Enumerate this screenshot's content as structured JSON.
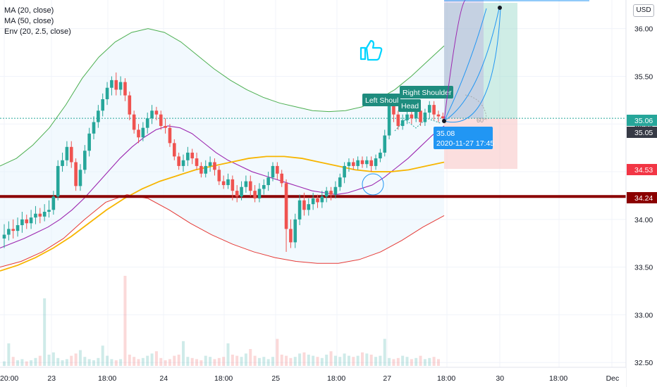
{
  "legend": {
    "ma20": "MA (20, close)",
    "ma50": "MA (50, close)",
    "env": "Env (20, 2.5, close)"
  },
  "currency": "USD",
  "colors": {
    "up": "#26a69a",
    "down": "#ef5350",
    "ma20": "#9c27b0",
    "ma50": "#f7b500",
    "env_upper": "#4caf50",
    "env_lower": "#e53935",
    "env_fill": "#e3f2fd",
    "support": "#8b0000",
    "target_zone": "#a7dfd2",
    "stop_zone": "#f8c8c8",
    "label_bg": "#1e8c7e",
    "price_tag": "#2196f3",
    "arc": "#2196f3",
    "thumb": "#00d4ff"
  },
  "annotations": {
    "left_shoulder": "Left Shoul",
    "right_shoulder": "Right Shoulder",
    "head": "Head",
    "price_bubble": "35.08",
    "time_bubble": "2020-11-27 17:45",
    "angle": "60°",
    "thumb_icon": "thumbs-up-icon"
  },
  "chart_data": {
    "type": "candlestick",
    "y_ticks": [
      "36.00",
      "35.50",
      "35.00",
      "34.50",
      "34.00",
      "33.50",
      "33.00",
      "32.50"
    ],
    "x_ticks": [
      "20:00",
      "23",
      "18:00",
      "24",
      "18:00",
      "25",
      "18:00",
      "27",
      "18:00",
      "30",
      "18:00",
      "Dec"
    ],
    "ylim": [
      32.45,
      36.3
    ],
    "price_labels": [
      {
        "value": "35.06",
        "color": "#26a69a"
      },
      {
        "value": "35.05",
        "color": "#363a45"
      },
      {
        "value": "34.53",
        "color": "#f23645"
      },
      {
        "value": "34.24",
        "color": "#8b0000"
      }
    ],
    "support_level": 34.24,
    "target_level": 36.27,
    "stop_level": 34.53,
    "entry_level": 35.06,
    "candles": [
      [
        33.8,
        33.84,
        33.7,
        33.95
      ],
      [
        33.84,
        33.9,
        33.78,
        33.98
      ],
      [
        33.9,
        33.88,
        33.8,
        34.0
      ],
      [
        33.88,
        33.94,
        33.82,
        34.02
      ],
      [
        33.94,
        34.0,
        33.86,
        34.08
      ],
      [
        34.0,
        33.96,
        33.9,
        34.05
      ],
      [
        33.96,
        34.02,
        33.9,
        34.1
      ],
      [
        34.02,
        34.06,
        33.95,
        34.14
      ],
      [
        34.06,
        34.03,
        33.96,
        34.12
      ],
      [
        34.03,
        34.08,
        33.98,
        34.16
      ],
      [
        34.08,
        34.1,
        34.02,
        34.2
      ],
      [
        34.1,
        34.24,
        34.05,
        34.3
      ],
      [
        34.24,
        34.56,
        34.2,
        34.62
      ],
      [
        34.56,
        34.62,
        34.5,
        34.7
      ],
      [
        34.62,
        34.76,
        34.56,
        34.82
      ],
      [
        34.76,
        34.6,
        34.54,
        34.82
      ],
      [
        34.6,
        34.35,
        34.3,
        34.64
      ],
      [
        34.35,
        34.52,
        34.3,
        34.58
      ],
      [
        34.52,
        34.72,
        34.48,
        34.78
      ],
      [
        34.72,
        34.9,
        34.66,
        34.96
      ],
      [
        34.9,
        35.02,
        34.84,
        35.08
      ],
      [
        35.02,
        35.14,
        34.96,
        35.2
      ],
      [
        35.14,
        35.26,
        35.08,
        35.32
      ],
      [
        35.26,
        35.38,
        35.2,
        35.44
      ],
      [
        35.38,
        35.46,
        35.3,
        35.5
      ],
      [
        35.46,
        35.36,
        35.3,
        35.54
      ],
      [
        35.36,
        35.44,
        35.3,
        35.5
      ],
      [
        35.44,
        35.3,
        35.24,
        35.48
      ],
      [
        35.3,
        35.1,
        35.04,
        35.34
      ],
      [
        35.1,
        34.94,
        34.9,
        35.14
      ],
      [
        34.94,
        34.86,
        34.8,
        35.0
      ],
      [
        34.86,
        34.96,
        34.82,
        35.02
      ],
      [
        34.96,
        35.06,
        34.9,
        35.12
      ],
      [
        35.06,
        35.14,
        35.0,
        35.2
      ],
      [
        35.14,
        35.1,
        35.04,
        35.18
      ],
      [
        35.1,
        34.98,
        34.94,
        35.14
      ],
      [
        34.98,
        34.96,
        34.9,
        35.06
      ],
      [
        34.96,
        34.8,
        34.76,
        35.0
      ],
      [
        34.8,
        34.66,
        34.62,
        34.84
      ],
      [
        34.66,
        34.56,
        34.52,
        34.7
      ],
      [
        34.56,
        34.62,
        34.5,
        34.68
      ],
      [
        34.62,
        34.7,
        34.56,
        34.76
      ],
      [
        34.7,
        34.64,
        34.58,
        34.74
      ],
      [
        34.64,
        34.56,
        34.52,
        34.7
      ],
      [
        34.56,
        34.48,
        34.44,
        34.6
      ],
      [
        34.48,
        34.56,
        34.44,
        34.62
      ],
      [
        34.56,
        34.6,
        34.5,
        34.66
      ],
      [
        34.6,
        34.52,
        34.46,
        34.64
      ],
      [
        34.52,
        34.4,
        34.36,
        34.56
      ],
      [
        34.4,
        34.36,
        34.32,
        34.46
      ],
      [
        34.36,
        34.42,
        34.32,
        34.48
      ],
      [
        34.42,
        34.3,
        34.2,
        34.46
      ],
      [
        34.3,
        34.24,
        34.18,
        34.36
      ],
      [
        34.24,
        34.34,
        34.2,
        34.4
      ],
      [
        34.34,
        34.4,
        34.28,
        34.46
      ],
      [
        34.4,
        34.3,
        34.24,
        34.46
      ],
      [
        34.3,
        34.22,
        34.18,
        34.36
      ],
      [
        34.22,
        34.32,
        34.18,
        34.38
      ],
      [
        34.32,
        34.36,
        34.26,
        34.42
      ],
      [
        34.36,
        34.44,
        34.3,
        34.5
      ],
      [
        34.44,
        34.56,
        34.4,
        34.6
      ],
      [
        34.56,
        34.48,
        34.42,
        34.6
      ],
      [
        34.48,
        34.38,
        34.34,
        34.52
      ],
      [
        34.38,
        33.9,
        33.66,
        34.42
      ],
      [
        33.9,
        33.76,
        33.7,
        34.0
      ],
      [
        33.76,
        34.0,
        33.7,
        34.06
      ],
      [
        34.0,
        34.2,
        33.94,
        34.26
      ],
      [
        34.2,
        34.1,
        34.04,
        34.28
      ],
      [
        34.1,
        34.16,
        34.04,
        34.22
      ],
      [
        34.16,
        34.22,
        34.1,
        34.28
      ],
      [
        34.22,
        34.18,
        34.12,
        34.26
      ],
      [
        34.18,
        34.24,
        34.12,
        34.3
      ],
      [
        34.24,
        34.3,
        34.18,
        34.34
      ],
      [
        34.3,
        34.26,
        34.2,
        34.34
      ],
      [
        34.26,
        34.34,
        34.22,
        34.4
      ],
      [
        34.34,
        34.44,
        34.3,
        34.48
      ],
      [
        34.44,
        34.56,
        34.38,
        34.6
      ],
      [
        34.56,
        34.6,
        34.5,
        34.64
      ],
      [
        34.6,
        34.56,
        34.52,
        34.64
      ],
      [
        34.56,
        34.62,
        34.52,
        34.66
      ],
      [
        34.62,
        34.58,
        34.54,
        34.66
      ],
      [
        34.58,
        34.62,
        34.54,
        34.66
      ],
      [
        34.62,
        34.56,
        34.5,
        34.66
      ],
      [
        34.56,
        34.64,
        34.52,
        34.68
      ],
      [
        34.64,
        34.7,
        34.6,
        34.74
      ],
      [
        34.7,
        34.88,
        34.66,
        34.94
      ],
      [
        34.88,
        35.2,
        34.84,
        35.26
      ],
      [
        35.2,
        35.1,
        35.02,
        35.26
      ],
      [
        35.1,
        34.98,
        34.94,
        35.14
      ],
      [
        34.98,
        35.04,
        34.94,
        35.1
      ],
      [
        35.04,
        35.1,
        35.0,
        35.16
      ],
      [
        35.1,
        35.06,
        35.0,
        35.14
      ],
      [
        35.06,
        35.14,
        35.02,
        35.2
      ],
      [
        35.14,
        35.02,
        34.98,
        35.18
      ],
      [
        35.02,
        35.12,
        34.98,
        35.16
      ],
      [
        35.12,
        35.2,
        35.06,
        35.24
      ],
      [
        35.2,
        35.1,
        35.04,
        35.24
      ],
      [
        35.1,
        35.08,
        35.02,
        35.14
      ],
      [
        35.08,
        35.06,
        35.02,
        35.12
      ]
    ],
    "ma20": [
      33.7,
      33.75,
      33.8,
      33.86,
      33.92,
      34.0,
      34.1,
      34.22,
      34.36,
      34.5,
      34.64,
      34.76,
      34.86,
      34.94,
      34.98,
      34.96,
      34.9,
      34.8,
      34.7,
      34.62,
      34.56,
      34.5,
      34.46,
      34.42,
      34.38,
      34.34,
      34.3,
      34.28,
      34.26,
      34.28,
      34.32,
      34.36,
      34.44,
      34.54,
      34.64,
      34.76,
      34.88,
      34.98
    ],
    "ma50": [
      33.46,
      33.52,
      33.6,
      33.7,
      33.82,
      33.96,
      34.1,
      34.22,
      34.32,
      34.4,
      34.46,
      34.52,
      34.56,
      34.6,
      34.64,
      34.66,
      34.66,
      34.64,
      34.6,
      34.56,
      34.52,
      34.5,
      34.5,
      34.52,
      34.56,
      34.6
    ],
    "env_upper": [
      34.56,
      34.64,
      34.78,
      34.96,
      35.2,
      35.48,
      35.7,
      35.86,
      35.96,
      36.0,
      35.96,
      35.86,
      35.72,
      35.58,
      35.46,
      35.36,
      35.28,
      35.22,
      35.18,
      35.14,
      35.13,
      35.14,
      35.18,
      35.26,
      35.36,
      35.5,
      35.66,
      35.82
    ],
    "env_lower": [
      33.5,
      33.56,
      33.66,
      33.8,
      34.0,
      34.18,
      34.26,
      34.22,
      34.1,
      33.96,
      33.84,
      33.74,
      33.66,
      33.6,
      33.56,
      33.54,
      33.54,
      33.58,
      33.66,
      33.78,
      33.92,
      34.04
    ],
    "volume": [
      4,
      20,
      8,
      5,
      6,
      4,
      5,
      7,
      9,
      60,
      10,
      12,
      7,
      5,
      6,
      9,
      11,
      14,
      8,
      6,
      5,
      7,
      18,
      9,
      6,
      5,
      6,
      80,
      10,
      8,
      6,
      7,
      9,
      11,
      13,
      7,
      5,
      6,
      9,
      10,
      22,
      8,
      7,
      6,
      5,
      9,
      8,
      6,
      7,
      8,
      20,
      10,
      9,
      8,
      11,
      15,
      9,
      7,
      8,
      6,
      8,
      24,
      10,
      9,
      7,
      8,
      11,
      12,
      10,
      9,
      8,
      7,
      10,
      13,
      9,
      8,
      11,
      9,
      8,
      9,
      12,
      11,
      10,
      8,
      9,
      24,
      7,
      6,
      7,
      9,
      8,
      6,
      7,
      9,
      6,
      7,
      8,
      6
    ]
  }
}
